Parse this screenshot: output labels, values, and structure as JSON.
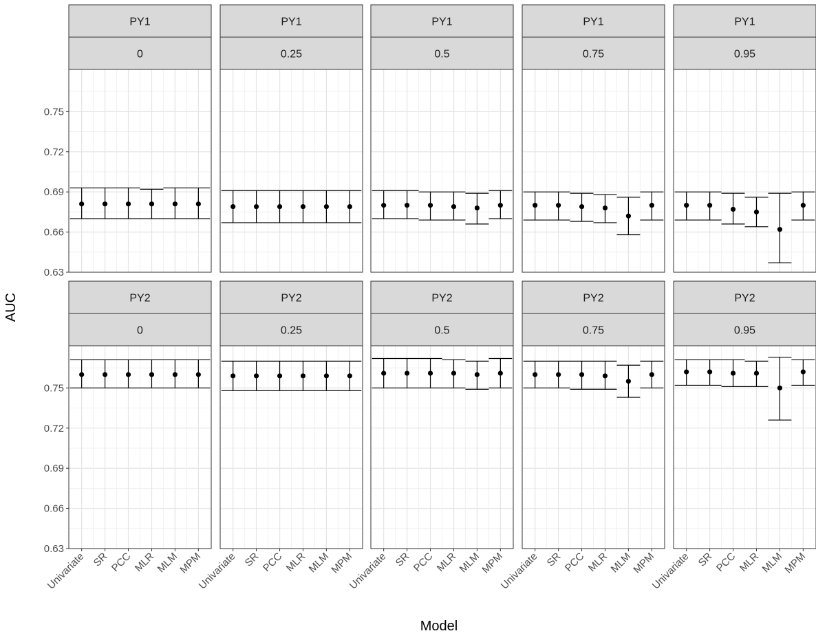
{
  "chart_data": {
    "type": "errorbar",
    "xlabel": "Model",
    "ylabel": "AUC",
    "categories": [
      "Univariate",
      "SR",
      "PCC",
      "MLR",
      "MLM",
      "MPM"
    ],
    "yticks": [
      "0.63",
      "0.66",
      "0.69",
      "0.72",
      "0.75"
    ],
    "ylim": [
      0.63,
      0.7815
    ],
    "grid": true,
    "legend": "none",
    "facet_rows": [
      "PY1",
      "PY2"
    ],
    "facet_cols": [
      "0",
      "0.25",
      "0.5",
      "0.75",
      "0.95"
    ],
    "panels": [
      {
        "row": "PY1",
        "col": "0",
        "mean": [
          0.681,
          0.681,
          0.681,
          0.681,
          0.681,
          0.681
        ],
        "lower": [
          0.67,
          0.67,
          0.67,
          0.67,
          0.67,
          0.67
        ],
        "upper": [
          0.693,
          0.693,
          0.693,
          0.692,
          0.693,
          0.693
        ]
      },
      {
        "row": "PY1",
        "col": "0.25",
        "mean": [
          0.679,
          0.679,
          0.679,
          0.679,
          0.679,
          0.679
        ],
        "lower": [
          0.667,
          0.667,
          0.667,
          0.667,
          0.667,
          0.667
        ],
        "upper": [
          0.691,
          0.691,
          0.691,
          0.691,
          0.691,
          0.691
        ]
      },
      {
        "row": "PY1",
        "col": "0.5",
        "mean": [
          0.68,
          0.68,
          0.68,
          0.679,
          0.678,
          0.68
        ],
        "lower": [
          0.67,
          0.67,
          0.669,
          0.669,
          0.666,
          0.67
        ],
        "upper": [
          0.691,
          0.691,
          0.69,
          0.69,
          0.689,
          0.691
        ]
      },
      {
        "row": "PY1",
        "col": "0.75",
        "mean": [
          0.68,
          0.68,
          0.679,
          0.678,
          0.672,
          0.68
        ],
        "lower": [
          0.669,
          0.669,
          0.668,
          0.667,
          0.658,
          0.669
        ],
        "upper": [
          0.69,
          0.69,
          0.689,
          0.688,
          0.686,
          0.69
        ]
      },
      {
        "row": "PY1",
        "col": "0.95",
        "mean": [
          0.68,
          0.68,
          0.677,
          0.675,
          0.662,
          0.68
        ],
        "lower": [
          0.669,
          0.669,
          0.666,
          0.664,
          0.637,
          0.669
        ],
        "upper": [
          0.69,
          0.69,
          0.689,
          0.686,
          0.689,
          0.69
        ]
      },
      {
        "row": "PY2",
        "col": "0",
        "mean": [
          0.76,
          0.76,
          0.76,
          0.76,
          0.76,
          0.76
        ],
        "lower": [
          0.75,
          0.75,
          0.75,
          0.75,
          0.75,
          0.75
        ],
        "upper": [
          0.771,
          0.771,
          0.771,
          0.771,
          0.771,
          0.771
        ]
      },
      {
        "row": "PY2",
        "col": "0.25",
        "mean": [
          0.759,
          0.759,
          0.759,
          0.759,
          0.759,
          0.759
        ],
        "lower": [
          0.748,
          0.748,
          0.748,
          0.748,
          0.748,
          0.748
        ],
        "upper": [
          0.77,
          0.77,
          0.77,
          0.77,
          0.77,
          0.77
        ]
      },
      {
        "row": "PY2",
        "col": "0.5",
        "mean": [
          0.761,
          0.761,
          0.761,
          0.761,
          0.76,
          0.761
        ],
        "lower": [
          0.75,
          0.75,
          0.75,
          0.75,
          0.749,
          0.75
        ],
        "upper": [
          0.772,
          0.772,
          0.772,
          0.771,
          0.77,
          0.772
        ]
      },
      {
        "row": "PY2",
        "col": "0.75",
        "mean": [
          0.76,
          0.76,
          0.76,
          0.759,
          0.755,
          0.76
        ],
        "lower": [
          0.75,
          0.75,
          0.749,
          0.749,
          0.743,
          0.75
        ],
        "upper": [
          0.77,
          0.77,
          0.77,
          0.77,
          0.767,
          0.77
        ]
      },
      {
        "row": "PY2",
        "col": "0.95",
        "mean": [
          0.762,
          0.762,
          0.761,
          0.761,
          0.75,
          0.762
        ],
        "lower": [
          0.752,
          0.752,
          0.751,
          0.751,
          0.726,
          0.752
        ],
        "upper": [
          0.771,
          0.771,
          0.771,
          0.77,
          0.773,
          0.771
        ]
      }
    ]
  }
}
